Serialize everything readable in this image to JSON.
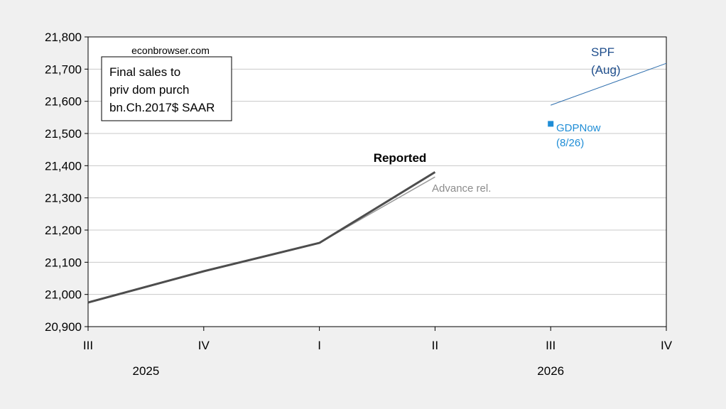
{
  "chart_data": {
    "type": "line",
    "categories": [
      "III",
      "IV",
      "I",
      "II",
      "III",
      "IV"
    ],
    "years": [
      {
        "label": "2025",
        "quarters": [
          "III",
          "IV"
        ]
      },
      {
        "label": "2026",
        "quarters": [
          "I",
          "II",
          "III",
          "IV"
        ]
      }
    ],
    "ylim": [
      20900,
      21800
    ],
    "yticks": [
      20900,
      21000,
      21100,
      21200,
      21300,
      21400,
      21500,
      21600,
      21700,
      21800
    ],
    "ytick_labels": [
      "20,900",
      "21,000",
      "21,100",
      "21,200",
      "21,300",
      "21,400",
      "21,500",
      "21,600",
      "21,700",
      "21,800"
    ],
    "grid": true,
    "series": [
      {
        "name": "Reported",
        "label": "Reported",
        "color": "#4d4d4d",
        "points": [
          [
            0,
            20975
          ],
          [
            1,
            21072
          ],
          [
            2,
            21160
          ],
          [
            3,
            21380
          ]
        ]
      },
      {
        "name": "Advance rel.",
        "label": "Advance rel.",
        "color": "#9a9a9a",
        "points": [
          [
            2,
            21160
          ],
          [
            3,
            21365
          ]
        ]
      },
      {
        "name": "SPF (Aug)",
        "label_lines": [
          "SPF",
          "(Aug)"
        ],
        "color": "#2f6fae",
        "points": [
          [
            4,
            21588
          ],
          [
            5,
            21718
          ]
        ]
      },
      {
        "name": "GDPNow (8/26)",
        "label_lines": [
          "GDPNow",
          "(8/26)"
        ],
        "color": "#1f8dd6",
        "marker": "square",
        "points": [
          [
            4,
            21530
          ]
        ]
      }
    ],
    "annotations": {
      "source": "econbrowser.com",
      "box_lines": [
        "Final sales to",
        "priv dom purch",
        "bn.Ch.2017$ SAAR"
      ]
    }
  }
}
